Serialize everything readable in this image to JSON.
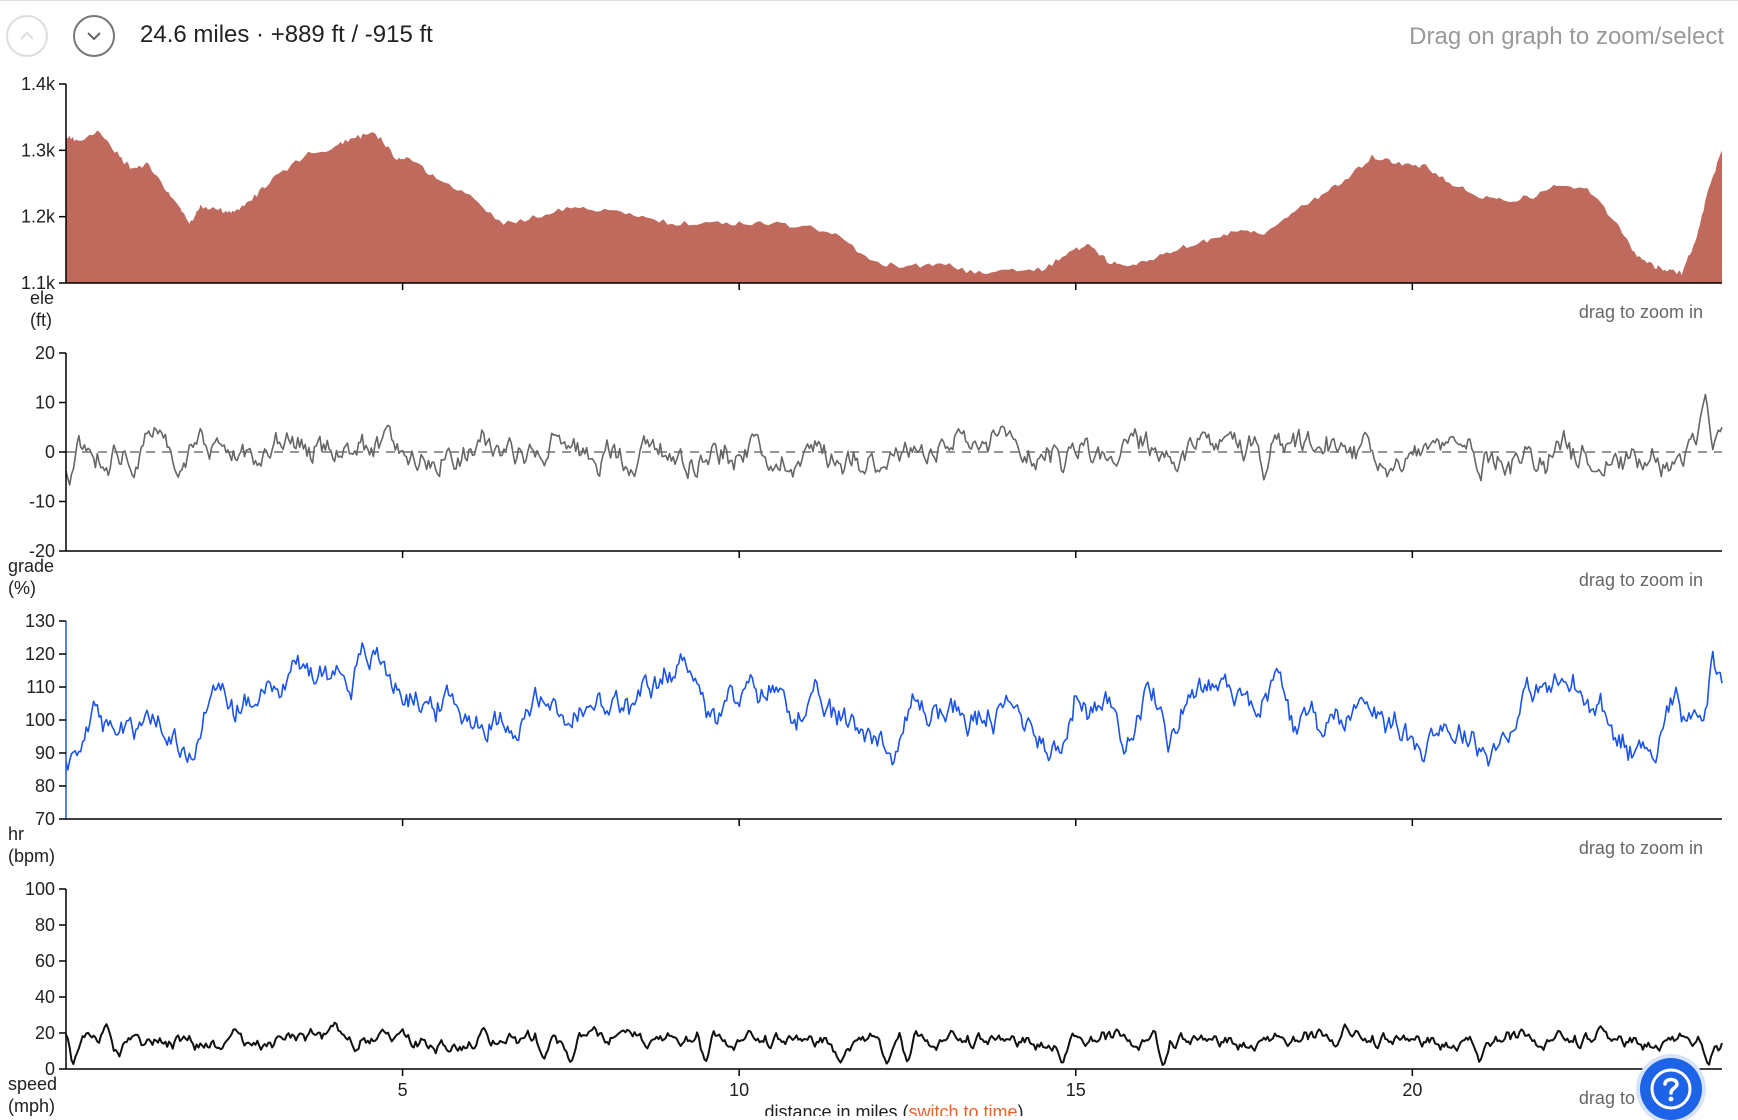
{
  "header": {
    "summary": "24.6 miles · +889 ft / -915 ft",
    "hint": "Drag on graph to zoom/select"
  },
  "zoom_hint": "drag to zoom in",
  "x_label": {
    "text": "distance in miles (",
    "link": "switch to time",
    "close": ")"
  },
  "colors": {
    "ele_fill": "#c0695d",
    "grade_line": "#666666",
    "hr_line": "#1c55e6",
    "speed_line": "#111111",
    "link": "#e8632b",
    "help": "#1d63e8"
  },
  "icons": {
    "up": "chevron-up-icon",
    "down": "chevron-down-icon",
    "help": "question-mark-icon"
  },
  "chart_data": [
    {
      "type": "area",
      "name_label": [
        "ele",
        "(ft)"
      ],
      "ylim": [
        1100,
        1400
      ],
      "yticks": [
        1100,
        1200,
        1300,
        1400
      ],
      "ytick_labels": [
        "1.1k",
        "1.2k",
        "1.3k",
        "1.4k"
      ],
      "x": [
        0,
        0.2,
        0.5,
        0.8,
        1.0,
        1.2,
        1.5,
        1.7,
        1.85,
        2.0,
        2.3,
        2.5,
        2.8,
        3.1,
        3.6,
        4.0,
        4.3,
        4.6,
        4.9,
        5.1,
        5.5,
        6.0,
        6.5,
        7.0,
        7.5,
        8.0,
        8.5,
        9.0,
        9.5,
        10.0,
        10.5,
        11.0,
        11.5,
        12.0,
        12.5,
        13.0,
        13.5,
        14.0,
        14.5,
        14.9,
        15.2,
        15.5,
        15.8,
        16.2,
        16.6,
        17.0,
        17.4,
        17.8,
        18.2,
        18.6,
        19.0,
        19.4,
        19.8,
        20.2,
        20.6,
        21.0,
        21.4,
        21.8,
        22.2,
        22.6,
        23.0,
        23.3,
        23.6,
        23.8,
        24.0,
        24.2,
        24.4,
        24.6
      ],
      "series": [
        {
          "values": [
            1320,
            1315,
            1330,
            1290,
            1270,
            1280,
            1240,
            1210,
            1190,
            1215,
            1210,
            1205,
            1230,
            1260,
            1295,
            1305,
            1320,
            1325,
            1290,
            1285,
            1260,
            1230,
            1190,
            1200,
            1215,
            1210,
            1200,
            1190,
            1190,
            1190,
            1190,
            1185,
            1170,
            1130,
            1125,
            1130,
            1115,
            1120,
            1120,
            1145,
            1160,
            1130,
            1125,
            1140,
            1155,
            1165,
            1180,
            1175,
            1205,
            1230,
            1255,
            1290,
            1280,
            1275,
            1250,
            1230,
            1225,
            1230,
            1250,
            1240,
            1195,
            1145,
            1125,
            1120,
            1115,
            1160,
            1240,
            1300
          ]
        }
      ]
    },
    {
      "type": "line",
      "name_label": [
        "grade",
        "(%)"
      ],
      "ylim": [
        -20,
        20
      ],
      "yticks": [
        -20,
        -10,
        0,
        10,
        20
      ],
      "ytick_labels": [
        "-20",
        "-10",
        "0",
        "10",
        "20"
      ],
      "reference_line": 0,
      "seed": 11,
      "base": 0,
      "amplitude": 2.2,
      "spikes": [
        [
          0.05,
          -7
        ],
        [
          2.0,
          5
        ],
        [
          7.1,
          -3
        ],
        [
          15.6,
          -3
        ],
        [
          16.9,
          4
        ],
        [
          17.8,
          -6
        ],
        [
          19.3,
          4
        ],
        [
          22.7,
          -4
        ],
        [
          24.35,
          12
        ],
        [
          24.6,
          5
        ]
      ]
    },
    {
      "type": "line",
      "name_label": [
        "hr",
        "(bpm)"
      ],
      "ylim": [
        70,
        130
      ],
      "yticks": [
        70,
        80,
        90,
        100,
        110,
        120,
        130
      ],
      "ytick_labels": [
        "70",
        "80",
        "90",
        "100",
        "110",
        "120",
        "130"
      ],
      "x": [
        0,
        0.2,
        0.4,
        0.7,
        0.9,
        1.2,
        1.5,
        1.8,
        2.0,
        2.2,
        2.5,
        2.8,
        3.2,
        3.7,
        4.2,
        4.6,
        5.0,
        5.5,
        6.0,
        6.5,
        7.0,
        7.5,
        8.0,
        8.5,
        9.0,
        9.3,
        9.6,
        10.0,
        10.5,
        11.0,
        11.5,
        12.0,
        12.3,
        12.6,
        13.0,
        13.5,
        14.0,
        14.5,
        14.8,
        15.0,
        15.3,
        15.7,
        16.1,
        16.4,
        16.7,
        17.2,
        17.6,
        18.0,
        18.3,
        18.8,
        19.1,
        19.5,
        20.0,
        20.4,
        20.8,
        21.2,
        21.6,
        22.0,
        22.4,
        22.8,
        23.0,
        23.3,
        23.6,
        23.9,
        24.1,
        24.3,
        24.45,
        24.6
      ],
      "series": [
        {
          "values": [
            85,
            95,
            103,
            90,
            98,
            100,
            95,
            90,
            95,
            115,
            100,
            110,
            115,
            115,
            115,
            118,
            110,
            105,
            102,
            100,
            105,
            100,
            103,
            102,
            112,
            120,
            100,
            105,
            110,
            102,
            99,
            98,
            90,
            104,
            103,
            100,
            102,
            98,
            90,
            110,
            102,
            97,
            110,
            95,
            112,
            110,
            108,
            111,
            97,
            100,
            103,
            107,
            93,
            100,
            97,
            92,
            105,
            109,
            110,
            100,
            95,
            90,
            95,
            110,
            100,
            104,
            122,
            111
          ]
        }
      ],
      "seed": 23,
      "noise": 5
    },
    {
      "type": "line",
      "name_label": [
        "speed",
        "(mph)"
      ],
      "ylim": [
        0,
        100
      ],
      "yticks": [
        0,
        20,
        40,
        60,
        80,
        100
      ],
      "ytick_labels": [
        "0",
        "20",
        "40",
        "60",
        "80",
        "100"
      ],
      "seed": 37,
      "base": 15,
      "amplitude": 3,
      "spikes": [
        [
          0.05,
          30
        ],
        [
          0.1,
          1
        ],
        [
          0.6,
          25
        ],
        [
          2.5,
          23
        ],
        [
          4.7,
          22
        ],
        [
          6.2,
          23
        ],
        [
          7.1,
          5
        ],
        [
          7.5,
          3
        ],
        [
          9.5,
          3
        ],
        [
          11.5,
          3
        ],
        [
          12.2,
          2
        ],
        [
          12.5,
          3
        ],
        [
          14.8,
          2
        ],
        [
          16.3,
          1
        ],
        [
          19.0,
          25
        ],
        [
          21.0,
          3
        ],
        [
          22.8,
          24
        ],
        [
          24.4,
          1
        ],
        [
          24.55,
          10
        ]
      ]
    }
  ],
  "x_axis": {
    "xlim": [
      0,
      24.6
    ],
    "ticks": [
      5,
      10,
      15,
      20
    ],
    "tick_labels": [
      "5",
      "10",
      "15",
      "20"
    ]
  }
}
